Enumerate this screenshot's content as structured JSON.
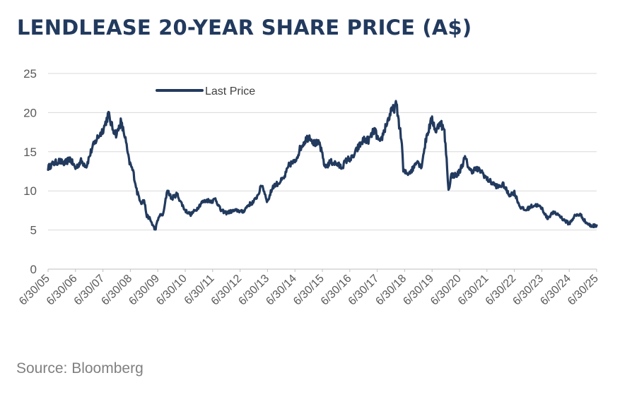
{
  "title": "LENDLEASE 20-YEAR SHARE PRICE (A$)",
  "source": "Source: Bloomberg",
  "colors": {
    "line": "#223a5e",
    "grid": "#d9d9d9",
    "title": "#223a5e"
  },
  "chart_data": {
    "type": "line",
    "title": "LENDLEASE 20-YEAR SHARE PRICE (A$)",
    "xlabel": "",
    "ylabel": "",
    "ylim": [
      0,
      25
    ],
    "yticks": [
      "0",
      "5",
      "10",
      "15",
      "20",
      "25"
    ],
    "xlim": [
      2005.5,
      2025.5
    ],
    "xticks": [
      "6/30/05",
      "6/30/06",
      "6/30/07",
      "6/30/08",
      "6/30/09",
      "6/30/10",
      "6/30/11",
      "6/30/12",
      "6/30/13",
      "6/30/14",
      "6/30/15",
      "6/30/16",
      "6/30/17",
      "6/30/18",
      "6/30/19",
      "6/30/20",
      "6/30/21",
      "6/30/22",
      "6/30/23",
      "6/30/24",
      "6/30/25"
    ],
    "grid": true,
    "legend": "top-left",
    "series": [
      {
        "name": "Last Price",
        "x": [
          2005.5,
          2005.7,
          2005.9,
          2006.1,
          2006.3,
          2006.5,
          2006.7,
          2006.9,
          2007.1,
          2007.3,
          2007.45,
          2007.55,
          2007.7,
          2007.85,
          2008.0,
          2008.15,
          2008.3,
          2008.45,
          2008.6,
          2008.75,
          2008.9,
          2009.0,
          2009.1,
          2009.2,
          2009.4,
          2009.55,
          2009.7,
          2009.85,
          2010.0,
          2010.2,
          2010.35,
          2010.5,
          2010.7,
          2010.9,
          2011.1,
          2011.3,
          2011.5,
          2011.6,
          2011.8,
          2012.0,
          2012.2,
          2012.4,
          2012.6,
          2012.8,
          2013.0,
          2013.15,
          2013.3,
          2013.5,
          2013.7,
          2013.9,
          2014.1,
          2014.3,
          2014.5,
          2014.7,
          2014.9,
          2015.05,
          2015.2,
          2015.4,
          2015.6,
          2015.8,
          2016.0,
          2016.2,
          2016.4,
          2016.6,
          2016.8,
          2017.0,
          2017.2,
          2017.4,
          2017.6,
          2017.8,
          2018.0,
          2018.2,
          2018.4,
          2018.45,
          2018.6,
          2018.8,
          2018.95,
          2019.1,
          2019.3,
          2019.5,
          2019.65,
          2019.8,
          2019.95,
          2020.05,
          2020.1,
          2020.2,
          2020.4,
          2020.5,
          2020.7,
          2020.9,
          2021.1,
          2021.3,
          2021.5,
          2021.7,
          2021.9,
          2022.1,
          2022.3,
          2022.5,
          2022.7,
          2022.9,
          2023.1,
          2023.3,
          2023.5,
          2023.7,
          2023.9,
          2024.1,
          2024.3,
          2024.5,
          2024.7,
          2024.9,
          2025.1,
          2025.3,
          2025.5
        ],
        "values": [
          13.0,
          13.5,
          13.8,
          13.5,
          14.1,
          12.9,
          13.8,
          13.2,
          15.4,
          16.8,
          17.5,
          18.2,
          19.8,
          18.0,
          17.2,
          18.8,
          17.0,
          13.8,
          12.5,
          9.8,
          8.5,
          8.8,
          6.8,
          6.5,
          5.0,
          6.8,
          7.0,
          10.2,
          9.0,
          9.6,
          8.5,
          7.5,
          7.0,
          7.6,
          8.5,
          8.8,
          8.7,
          9.0,
          7.5,
          7.2,
          7.4,
          7.5,
          7.3,
          8.2,
          8.6,
          9.5,
          10.8,
          8.6,
          10.6,
          11.0,
          11.6,
          13.4,
          13.7,
          15.5,
          16.6,
          17.0,
          16.1,
          16.0,
          13.0,
          13.7,
          13.5,
          13.0,
          14.0,
          14.2,
          15.5,
          16.5,
          16.5,
          17.8,
          16.0,
          18.2,
          20.0,
          21.0,
          16.0,
          12.5,
          12.2,
          12.8,
          14.0,
          13.0,
          17.0,
          19.2,
          17.5,
          19.0,
          17.5,
          13.0,
          10.0,
          12.0,
          12.0,
          12.5,
          14.2,
          12.5,
          12.8,
          12.5,
          11.5,
          11.0,
          10.5,
          10.8,
          9.5,
          9.8,
          8.0,
          7.5,
          8.0,
          8.2,
          7.8,
          6.5,
          7.2,
          7.0,
          6.3,
          5.8,
          6.8,
          7.0,
          6.0,
          5.5,
          5.6
        ]
      }
    ]
  }
}
